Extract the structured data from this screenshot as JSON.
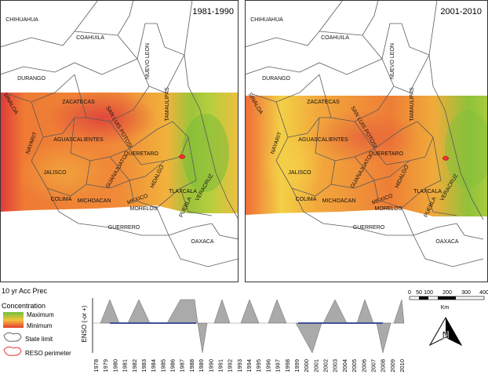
{
  "panels": [
    {
      "period": "1981-1990"
    },
    {
      "period": "2001-2010"
    }
  ],
  "state_labels": [
    "CHIHUAHUA",
    "COAHUILA",
    "NUEVO LEON",
    "DURANGO",
    "SINALOA",
    "ZACATECAS",
    "TAMAULIPAS",
    "SAN LUIS POTOSI",
    "NAYARIT",
    "AGUASCALIENTES",
    "QUERETARO",
    "GUANAJUATO",
    "HIDALGO",
    "JALISCO",
    "VERACRUZ",
    "COLIMA",
    "MICHOACAN",
    "MEXICO",
    "TLAXCALA",
    "MORELOS",
    "PUEBLA",
    "GUERRERO",
    "OAXACA"
  ],
  "legend": {
    "title": "10  yr Acc Prec",
    "concentration": "Concentration",
    "maximum": "Maximum",
    "minimum": "Minimum",
    "state_limit": "State limit",
    "reso_perimeter": "RESO perimeter"
  },
  "enso": {
    "axis_label": "ENSO (-or +)",
    "years": [
      "1978",
      "1979",
      "1980",
      "1981",
      "1982",
      "1983",
      "1984",
      "1985",
      "1986",
      "1987",
      "1988",
      "1989",
      "1990",
      "1991",
      "1992",
      "1993",
      "1994",
      "1995",
      "1996",
      "1997",
      "1998",
      "1999",
      "2000",
      "2001",
      "2002",
      "2003",
      "2004",
      "2005",
      "2006",
      "2007",
      "2008",
      "2009",
      "2010"
    ]
  },
  "scale": {
    "ticks": [
      "0",
      "50",
      "100",
      "200",
      "300",
      "400"
    ],
    "unit": "Km"
  },
  "north": "N"
}
